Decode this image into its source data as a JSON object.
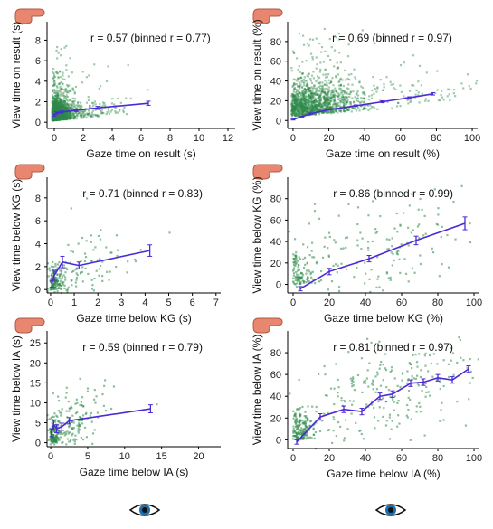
{
  "colors": {
    "points": "#2f8a4a",
    "fit": "#4b2bd6",
    "axis": "#000000",
    "hand": "#e8866f",
    "eye": "#1a6fb0"
  },
  "icons": {
    "top": "hand-icon",
    "bottom": "eye-icon"
  },
  "chart_data": [
    {
      "type": "scatter",
      "annotation": "r = 0.57 (binned r = 0.77)",
      "xlabel": "Gaze time on result (s)",
      "ylabel": "View time on result (s)",
      "xlim": [
        -0.5,
        12.5
      ],
      "ylim": [
        -0.6,
        9.8
      ],
      "xticks": [
        0,
        2,
        4,
        6,
        8,
        10,
        12
      ],
      "yticks": [
        0,
        2,
        4,
        6,
        8
      ],
      "scatter_cloud": {
        "x_center": 0.3,
        "y_center": 0.6,
        "x_spread": 1.0,
        "y_spread": 0.9,
        "count": 1600,
        "dense": true
      },
      "binned": {
        "x": [
          0.0,
          0.15,
          0.5,
          1.5,
          3.0,
          6.5
        ],
        "y": [
          0.7,
          0.9,
          1.0,
          1.15,
          1.4,
          1.85
        ],
        "err": [
          0.1,
          0.1,
          0.1,
          0.1,
          0.15,
          0.2
        ]
      }
    },
    {
      "type": "scatter",
      "annotation": "r = 0.69 (binned r = 0.97)",
      "xlabel": "Gaze time on result (%)",
      "ylabel": "View time on result (%)",
      "xlim": [
        -3,
        103
      ],
      "ylim": [
        -8,
        100
      ],
      "xticks": [
        0,
        20,
        40,
        60,
        80,
        100
      ],
      "yticks": [
        0,
        20,
        40,
        60,
        80
      ],
      "scatter_cloud": {
        "x_center": 30,
        "y_center": 14,
        "x_spread": 28,
        "y_spread": 15,
        "count": 1400,
        "dense": true
      },
      "binned": {
        "x": [
          0,
          5,
          10,
          20,
          35,
          50,
          65,
          78
        ],
        "y": [
          1,
          4,
          7,
          11,
          15,
          19,
          23,
          27
        ],
        "err": [
          0.5,
          0.5,
          0.6,
          0.7,
          0.8,
          0.9,
          1.0,
          1.2
        ]
      }
    },
    {
      "type": "scatter",
      "annotation": "r = 0.71 (binned r = 0.83)",
      "xlabel": "Gaze time below KG (s)",
      "ylabel": "View time below KG (s)",
      "xlim": [
        -0.15,
        7.2
      ],
      "ylim": [
        -0.3,
        9.8
      ],
      "xticks": [
        0,
        1,
        2,
        3,
        4,
        5,
        6,
        7
      ],
      "yticks": [
        0,
        2,
        4,
        6,
        8
      ],
      "scatter_cloud": {
        "x_center": 0.4,
        "y_center": 1.0,
        "x_spread": 1.3,
        "y_spread": 1.6,
        "count": 300,
        "dense": false
      },
      "binned": {
        "x": [
          0.05,
          0.15,
          0.5,
          1.2,
          4.2
        ],
        "y": [
          0.5,
          1.2,
          2.4,
          2.1,
          3.4
        ],
        "err": [
          0.3,
          0.4,
          0.5,
          0.3,
          0.5
        ]
      }
    },
    {
      "type": "scatter",
      "annotation": "r = 0.86 (binned r = 0.99)",
      "xlabel": "Gaze time below KG (%)",
      "ylabel": "View time below KG (%)",
      "xlim": [
        -3,
        103
      ],
      "ylim": [
        -8,
        100
      ],
      "xticks": [
        0,
        20,
        40,
        60,
        80,
        100
      ],
      "yticks": [
        0,
        20,
        40,
        60,
        80
      ],
      "scatter_cloud": {
        "x_center": 45,
        "y_center": 30,
        "x_spread": 30,
        "y_spread": 25,
        "count": 280,
        "dense": false
      },
      "binned": {
        "x": [
          4,
          20,
          42,
          68,
          95
        ],
        "y": [
          -4,
          12,
          24,
          41,
          57
        ],
        "err": [
          2,
          3,
          3,
          4,
          6
        ]
      }
    },
    {
      "type": "scatter",
      "annotation": "r = 0.59 (binned r = 0.79)",
      "xlabel": "Gaze time below IA (s)",
      "ylabel": "View time below IA (s)",
      "xlim": [
        -0.5,
        23
      ],
      "ylim": [
        -1,
        28
      ],
      "xticks": [
        0,
        5,
        10,
        15,
        20
      ],
      "yticks": [
        0,
        5,
        10,
        15,
        20,
        25
      ],
      "scatter_cloud": {
        "x_center": 1.5,
        "y_center": 3.0,
        "x_spread": 3.0,
        "y_spread": 4.0,
        "count": 350,
        "dense": false
      },
      "binned": {
        "x": [
          0.1,
          0.4,
          0.8,
          1.5,
          2.5,
          13.5
        ],
        "y": [
          2.5,
          4.5,
          3.5,
          4.0,
          5.5,
          8.5
        ],
        "err": [
          1.0,
          1.2,
          1.0,
          0.9,
          0.8,
          1.0
        ]
      }
    },
    {
      "type": "scatter",
      "annotation": "r = 0.81 (binned r = 0.97)",
      "xlabel": "Gaze time below IA (%)",
      "ylabel": "View time below IA (%)",
      "xlim": [
        -3,
        103
      ],
      "ylim": [
        -8,
        100
      ],
      "xticks": [
        0,
        20,
        40,
        60,
        80,
        100
      ],
      "yticks": [
        0,
        20,
        40,
        60,
        80
      ],
      "scatter_cloud": {
        "x_center": 55,
        "y_center": 45,
        "x_spread": 28,
        "y_spread": 22,
        "count": 420,
        "dense": false
      },
      "binned": {
        "x": [
          2,
          15,
          28,
          38,
          48,
          55,
          65,
          72,
          80,
          88,
          97
        ],
        "y": [
          -2,
          21,
          28,
          26,
          40,
          42,
          52,
          53,
          57,
          55,
          65
        ],
        "err": [
          2,
          3,
          3,
          3,
          3,
          3,
          3,
          3,
          3,
          3,
          3
        ]
      }
    }
  ]
}
